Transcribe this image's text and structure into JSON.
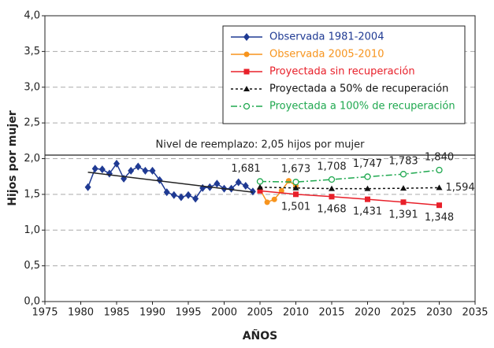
{
  "chart_data": {
    "type": "line",
    "xlabel": "AÑOS",
    "ylabel": "Hijos por mujer",
    "xlim": [
      1975,
      2035
    ],
    "xticks": [
      1975,
      1980,
      1985,
      1990,
      1995,
      2000,
      2005,
      2010,
      2015,
      2020,
      2025,
      2030,
      2035
    ],
    "ylim": [
      0,
      4
    ],
    "yticks": [
      {
        "value": 0,
        "label": "0,0"
      },
      {
        "value": 0.5,
        "label": "0,5"
      },
      {
        "value": 1,
        "label": "1,0"
      },
      {
        "value": 1.5,
        "label": "1,5"
      },
      {
        "value": 2,
        "label": "2,0"
      },
      {
        "value": 2.5,
        "label": "2,5"
      },
      {
        "value": 3,
        "label": "3,0"
      },
      {
        "value": 3.5,
        "label": "3,5"
      },
      {
        "value": 4,
        "label": "4,0"
      }
    ],
    "grid": true,
    "reference": {
      "value": 2.05,
      "label": "Nivel de reemplazo: 2,05 hijos por mujer"
    },
    "series": [
      {
        "name": "Observada 1981-2004",
        "color": "#1f3a93",
        "marker": "diamond",
        "x": [
          1981,
          1982,
          1983,
          1984,
          1985,
          1986,
          1987,
          1988,
          1989,
          1990,
          1991,
          1992,
          1993,
          1994,
          1995,
          1996,
          1997,
          1998,
          1999,
          2000,
          2001,
          2002,
          2003,
          2004
        ],
        "values": [
          1.6,
          1.86,
          1.85,
          1.79,
          1.93,
          1.72,
          1.83,
          1.89,
          1.83,
          1.83,
          1.7,
          1.53,
          1.49,
          1.46,
          1.49,
          1.44,
          1.59,
          1.6,
          1.65,
          1.58,
          1.58,
          1.67,
          1.62,
          1.54
        ]
      },
      {
        "color": "#222222",
        "marker": "none",
        "x": [
          1981,
          2004
        ],
        "values": [
          1.81,
          1.53
        ]
      },
      {
        "name": "Observada 2005-2010",
        "color": "#f7941d",
        "marker": "circle",
        "x": [
          2005,
          2006,
          2007,
          2008,
          2009,
          2010
        ],
        "values": [
          1.57,
          1.39,
          1.43,
          1.55,
          1.69,
          1.62
        ]
      },
      {
        "name": "Proyectada sin recuperación",
        "color": "#e8202a",
        "marker": "square",
        "label_position": "below",
        "x": [
          2005,
          2010,
          2015,
          2020,
          2025,
          2030
        ],
        "values": [
          1.55,
          1.501,
          1.468,
          1.431,
          1.391,
          1.348
        ],
        "value_labels": [
          null,
          "1,501",
          "1,468",
          "1,431",
          "1,391",
          "1,348"
        ]
      },
      {
        "name": "Proyectada a 50% de recuperación",
        "color": "#111111",
        "marker": "triangle",
        "dash": "3,3",
        "label_position": "right",
        "x": [
          2005,
          2010,
          2015,
          2020,
          2025,
          2030
        ],
        "values": [
          1.6,
          1.59,
          1.58,
          1.58,
          1.585,
          1.594
        ],
        "value_labels": [
          null,
          null,
          null,
          null,
          null,
          "1,594"
        ]
      },
      {
        "name": "Proyectada a 100% de recuperación",
        "color": "#1fa84f",
        "marker": "open-circle",
        "dash": "8,3,2,3",
        "label_position": "above",
        "x": [
          2005,
          2010,
          2015,
          2020,
          2025,
          2030
        ],
        "values": [
          1.681,
          1.673,
          1.708,
          1.747,
          1.783,
          1.84
        ],
        "value_labels": [
          "1,681",
          "1,673",
          "1,708",
          "1,747",
          "1,783",
          "1,840"
        ]
      }
    ]
  }
}
